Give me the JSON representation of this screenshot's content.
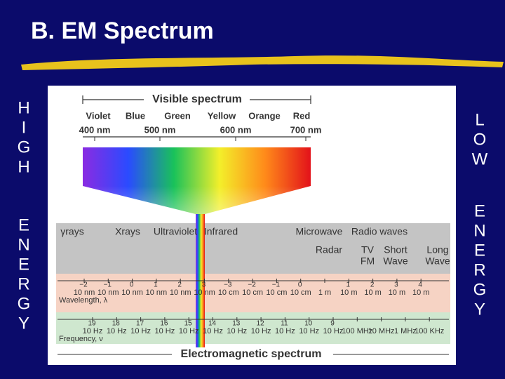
{
  "title": "B. EM Spectrum",
  "left_side": [
    [
      "H",
      "I",
      "G",
      "H"
    ],
    [
      "E",
      "N",
      "E",
      "R",
      "G",
      "Y"
    ]
  ],
  "right_side": [
    [
      "L",
      "O",
      "W"
    ],
    [
      "E",
      "N",
      "E",
      "R",
      "G",
      "Y"
    ]
  ],
  "visible": {
    "heading": "Visible spectrum",
    "colors": [
      "Violet",
      "Blue",
      "Green",
      "Yellow",
      "Orange",
      "Red"
    ],
    "wavelengths": [
      "400 nm",
      "500 nm",
      "600 nm",
      "700 nm"
    ]
  },
  "regions": [
    {
      "lines": [
        "γrays"
      ]
    },
    {
      "lines": [
        "Xrays"
      ]
    },
    {
      "lines": [
        "Ultraviolet"
      ]
    },
    {
      "lines": [
        "Infrared"
      ]
    },
    {
      "lines": [
        "Microwave"
      ]
    },
    {
      "lines": [
        "Radio waves"
      ]
    },
    {
      "lines": [
        "Radar"
      ]
    },
    {
      "lines": [
        "TV",
        "FM"
      ]
    },
    {
      "lines": [
        "Short",
        "Wave"
      ]
    },
    {
      "lines": [
        "Long",
        "Wave"
      ]
    }
  ],
  "wavelength": {
    "label": "Wavelength, λ",
    "ticks": [
      {
        "exp": "−2",
        "text": "10 nm"
      },
      {
        "exp": "−1",
        "text": "10 nm"
      },
      {
        "exp": "0",
        "text": "10 nm"
      },
      {
        "exp": "1",
        "text": "10 nm"
      },
      {
        "exp": "2",
        "text": "10 nm"
      },
      {
        "exp": "3",
        "text": "10 nm"
      },
      {
        "exp": "−3",
        "text": "10 cm"
      },
      {
        "exp": "−2",
        "text": "10 cm"
      },
      {
        "exp": "−1",
        "text": "10 cm"
      },
      {
        "exp": "0",
        "text": "10 cm"
      },
      {
        "text": "1 m"
      },
      {
        "exp": "1",
        "text": "10 m"
      },
      {
        "exp": "2",
        "text": "10 m"
      },
      {
        "exp": "3",
        "text": "10 m"
      },
      {
        "exp": "4",
        "text": "10 m"
      }
    ]
  },
  "frequency": {
    "label": "Frequency, ν",
    "ticks": [
      {
        "exp": "19",
        "text": "10 Hz"
      },
      {
        "exp": "18",
        "text": "10 Hz"
      },
      {
        "exp": "17",
        "text": "10 Hz"
      },
      {
        "exp": "16",
        "text": "10 Hz"
      },
      {
        "exp": "15",
        "text": "10 Hz"
      },
      {
        "exp": "14",
        "text": "10 Hz"
      },
      {
        "exp": "13",
        "text": "10 Hz"
      },
      {
        "exp": "12",
        "text": "10 Hz"
      },
      {
        "exp": "11",
        "text": "10 Hz"
      },
      {
        "exp": "10",
        "text": "10 Hz"
      },
      {
        "exp": "9",
        "text": "10 Hz"
      },
      {
        "text": "100 MHz"
      },
      {
        "text": "10 MHz"
      },
      {
        "text": "1 MHz"
      },
      {
        "text": "100 KHz"
      }
    ]
  },
  "footer": "Electromagnetic spectrum"
}
